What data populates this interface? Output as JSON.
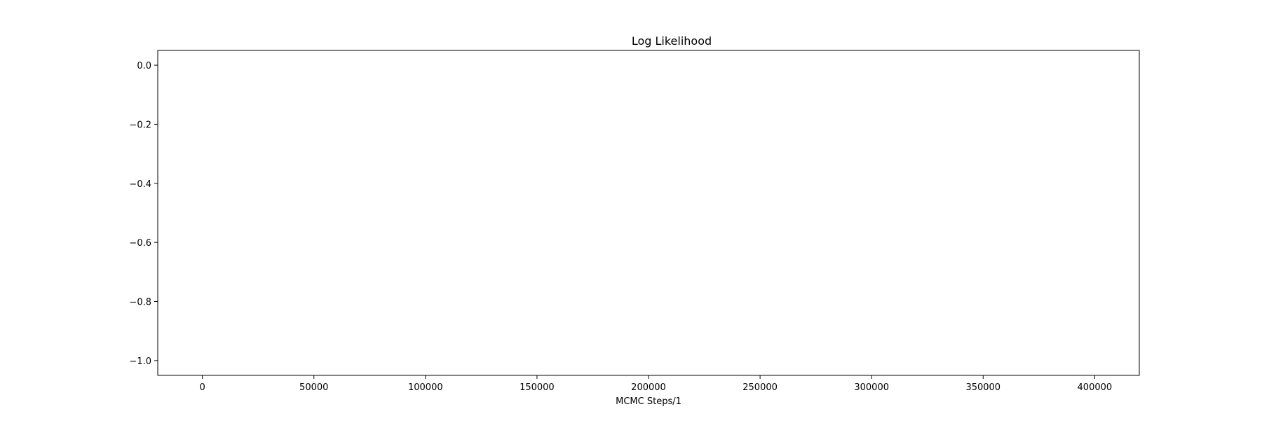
{
  "chart_data": {
    "type": "line",
    "title": "Log Likelihood",
    "xlabel": "MCMC Steps/1",
    "ylabel": "",
    "xlim": [
      -20000,
      420000
    ],
    "ylim": [
      -1.05,
      0.05
    ],
    "x_ticks": [
      0,
      50000,
      100000,
      150000,
      200000,
      250000,
      300000,
      350000,
      400000
    ],
    "x_tick_labels": [
      "0",
      "50000",
      "100000",
      "150000",
      "200000",
      "250000",
      "300000",
      "350000",
      "400000"
    ],
    "y_ticks": [
      0.0,
      -0.2,
      -0.4,
      -0.6,
      -0.8,
      -1.0
    ],
    "y_tick_labels": [
      "0.0",
      "−0.2",
      "−0.4",
      "−0.6",
      "−0.8",
      "−1.0"
    ],
    "series": [],
    "grid": false,
    "legend": "none"
  }
}
